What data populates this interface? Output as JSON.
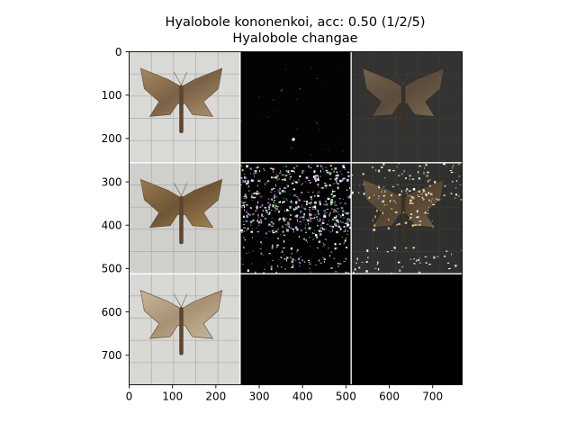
{
  "chart_data": {
    "type": "heatmap",
    "title": "Hyalobole kononenkoi, acc: 0.50 (1/2/5)",
    "subtitle": "Hyalobole changae",
    "xlabel": "",
    "ylabel": "",
    "xlim": [
      0,
      768
    ],
    "ylim": [
      768,
      0
    ],
    "x_ticks": [
      0,
      100,
      200,
      300,
      400,
      500,
      600,
      700
    ],
    "y_ticks": [
      0,
      100,
      200,
      300,
      400,
      500,
      600,
      700
    ],
    "grid": false,
    "image_grid": {
      "rows": 3,
      "cols": 3,
      "tile_size": 256,
      "tiles": [
        {
          "row": 0,
          "col": 0,
          "content": "moth-specimen",
          "tone": "brown-light"
        },
        {
          "row": 0,
          "col": 1,
          "content": "attribution-map",
          "tone": "sparse-dark"
        },
        {
          "row": 0,
          "col": 2,
          "content": "masked-moth",
          "tone": "dim"
        },
        {
          "row": 1,
          "col": 0,
          "content": "moth-specimen",
          "tone": "brown"
        },
        {
          "row": 1,
          "col": 1,
          "content": "attribution-map",
          "tone": "noisy-dark"
        },
        {
          "row": 1,
          "col": 2,
          "content": "masked-moth",
          "tone": "dark-speckled"
        },
        {
          "row": 2,
          "col": 0,
          "content": "moth-specimen",
          "tone": "pale"
        },
        {
          "row": 2,
          "col": 1,
          "content": "attribution-map",
          "tone": "black"
        },
        {
          "row": 2,
          "col": 2,
          "content": "masked-moth",
          "tone": "black"
        }
      ]
    }
  }
}
